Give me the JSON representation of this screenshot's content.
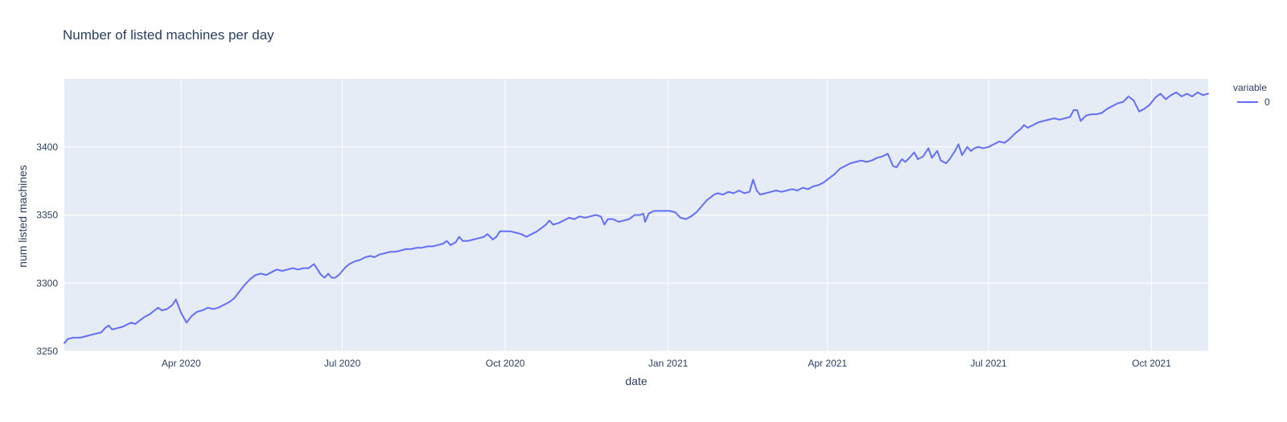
{
  "title": "Number of listed machines per day",
  "legend": {
    "title": "variable",
    "items": [
      {
        "label": "0",
        "color": "#636efa"
      }
    ]
  },
  "colors": {
    "line": "#636efa",
    "plot_bg": "#e5ecf6",
    "grid": "#ffffff",
    "text": "#2a3f5f",
    "paper_bg": "#ffffff"
  },
  "chart_data": {
    "type": "line",
    "title": "Number of listed machines per day",
    "xlabel": "date",
    "ylabel": "num listed machines",
    "grid": true,
    "legend_position": "right",
    "x_range": [
      "2020-01-26",
      "2021-11-02"
    ],
    "ylim": [
      3250,
      3450
    ],
    "y_ticks": [
      3250,
      3300,
      3350,
      3400
    ],
    "x_ticks": [
      {
        "label": "Apr 2020",
        "date": "2020-04-01"
      },
      {
        "label": "Jul 2020",
        "date": "2020-07-01"
      },
      {
        "label": "Oct 2020",
        "date": "2020-10-01"
      },
      {
        "label": "Jan 2021",
        "date": "2021-01-01"
      },
      {
        "label": "Apr 2021",
        "date": "2021-04-01"
      },
      {
        "label": "Jul 2021",
        "date": "2021-07-01"
      },
      {
        "label": "Oct 2021",
        "date": "2021-10-01"
      }
    ],
    "series": [
      {
        "name": "0",
        "color": "#636efa",
        "points": [
          [
            "2020-01-26",
            3256
          ],
          [
            "2020-01-28",
            3259
          ],
          [
            "2020-01-31",
            3260
          ],
          [
            "2020-02-04",
            3260
          ],
          [
            "2020-02-07",
            3261
          ],
          [
            "2020-02-10",
            3262
          ],
          [
            "2020-02-13",
            3263
          ],
          [
            "2020-02-16",
            3264
          ],
          [
            "2020-02-18",
            3267
          ],
          [
            "2020-02-20",
            3269
          ],
          [
            "2020-02-22",
            3266
          ],
          [
            "2020-02-25",
            3267
          ],
          [
            "2020-02-28",
            3268
          ],
          [
            "2020-03-02",
            3270
          ],
          [
            "2020-03-04",
            3271
          ],
          [
            "2020-03-06",
            3270
          ],
          [
            "2020-03-08",
            3272
          ],
          [
            "2020-03-11",
            3275
          ],
          [
            "2020-03-14",
            3277
          ],
          [
            "2020-03-17",
            3280
          ],
          [
            "2020-03-19",
            3282
          ],
          [
            "2020-03-21",
            3280
          ],
          [
            "2020-03-24",
            3281
          ],
          [
            "2020-03-27",
            3284
          ],
          [
            "2020-03-29",
            3288
          ],
          [
            "2020-04-01",
            3278
          ],
          [
            "2020-04-04",
            3271
          ],
          [
            "2020-04-07",
            3276
          ],
          [
            "2020-04-10",
            3279
          ],
          [
            "2020-04-13",
            3280
          ],
          [
            "2020-04-16",
            3282
          ],
          [
            "2020-04-19",
            3281
          ],
          [
            "2020-04-22",
            3282
          ],
          [
            "2020-04-25",
            3284
          ],
          [
            "2020-04-28",
            3286
          ],
          [
            "2020-05-01",
            3289
          ],
          [
            "2020-05-04",
            3294
          ],
          [
            "2020-05-07",
            3299
          ],
          [
            "2020-05-10",
            3303
          ],
          [
            "2020-05-13",
            3306
          ],
          [
            "2020-05-16",
            3307
          ],
          [
            "2020-05-19",
            3306
          ],
          [
            "2020-05-22",
            3308
          ],
          [
            "2020-05-25",
            3310
          ],
          [
            "2020-05-28",
            3309
          ],
          [
            "2020-05-31",
            3310
          ],
          [
            "2020-06-03",
            3311
          ],
          [
            "2020-06-06",
            3310
          ],
          [
            "2020-06-09",
            3311
          ],
          [
            "2020-06-12",
            3311
          ],
          [
            "2020-06-15",
            3314
          ],
          [
            "2020-06-17",
            3310
          ],
          [
            "2020-06-19",
            3306
          ],
          [
            "2020-06-21",
            3304
          ],
          [
            "2020-06-23",
            3307
          ],
          [
            "2020-06-25",
            3304
          ],
          [
            "2020-06-27",
            3304
          ],
          [
            "2020-06-29",
            3306
          ],
          [
            "2020-07-01",
            3309
          ],
          [
            "2020-07-03",
            3312
          ],
          [
            "2020-07-05",
            3314
          ],
          [
            "2020-07-08",
            3316
          ],
          [
            "2020-07-11",
            3317
          ],
          [
            "2020-07-14",
            3319
          ],
          [
            "2020-07-17",
            3320
          ],
          [
            "2020-07-19",
            3319
          ],
          [
            "2020-07-22",
            3321
          ],
          [
            "2020-07-25",
            3322
          ],
          [
            "2020-07-28",
            3323
          ],
          [
            "2020-07-31",
            3323
          ],
          [
            "2020-08-03",
            3324
          ],
          [
            "2020-08-06",
            3325
          ],
          [
            "2020-08-09",
            3325
          ],
          [
            "2020-08-12",
            3326
          ],
          [
            "2020-08-15",
            3326
          ],
          [
            "2020-08-18",
            3327
          ],
          [
            "2020-08-21",
            3327
          ],
          [
            "2020-08-24",
            3328
          ],
          [
            "2020-08-27",
            3329
          ],
          [
            "2020-08-29",
            3331
          ],
          [
            "2020-08-31",
            3328
          ],
          [
            "2020-09-03",
            3330
          ],
          [
            "2020-09-05",
            3334
          ],
          [
            "2020-09-07",
            3331
          ],
          [
            "2020-09-10",
            3331
          ],
          [
            "2020-09-13",
            3332
          ],
          [
            "2020-09-16",
            3333
          ],
          [
            "2020-09-19",
            3334
          ],
          [
            "2020-09-21",
            3336
          ],
          [
            "2020-09-24",
            3332
          ],
          [
            "2020-09-26",
            3334
          ],
          [
            "2020-09-28",
            3338
          ],
          [
            "2020-10-01",
            3338
          ],
          [
            "2020-10-04",
            3338
          ],
          [
            "2020-10-07",
            3337
          ],
          [
            "2020-10-10",
            3336
          ],
          [
            "2020-10-13",
            3334
          ],
          [
            "2020-10-16",
            3336
          ],
          [
            "2020-10-19",
            3338
          ],
          [
            "2020-10-22",
            3341
          ],
          [
            "2020-10-24",
            3343
          ],
          [
            "2020-10-26",
            3346
          ],
          [
            "2020-10-28",
            3343
          ],
          [
            "2020-10-31",
            3344
          ],
          [
            "2020-11-03",
            3346
          ],
          [
            "2020-11-06",
            3348
          ],
          [
            "2020-11-09",
            3347
          ],
          [
            "2020-11-12",
            3349
          ],
          [
            "2020-11-15",
            3348
          ],
          [
            "2020-11-18",
            3349
          ],
          [
            "2020-11-21",
            3350
          ],
          [
            "2020-11-24",
            3349
          ],
          [
            "2020-11-26",
            3343
          ],
          [
            "2020-11-28",
            3347
          ],
          [
            "2020-12-01",
            3347
          ],
          [
            "2020-12-04",
            3345
          ],
          [
            "2020-12-07",
            3346
          ],
          [
            "2020-12-10",
            3347
          ],
          [
            "2020-12-13",
            3350
          ],
          [
            "2020-12-16",
            3350
          ],
          [
            "2020-12-18",
            3351
          ],
          [
            "2020-12-19",
            3345
          ],
          [
            "2020-12-21",
            3351
          ],
          [
            "2020-12-24",
            3353
          ],
          [
            "2020-12-27",
            3353
          ],
          [
            "2020-12-30",
            3353
          ],
          [
            "2021-01-02",
            3353
          ],
          [
            "2021-01-05",
            3352
          ],
          [
            "2021-01-08",
            3348
          ],
          [
            "2021-01-11",
            3347
          ],
          [
            "2021-01-14",
            3349
          ],
          [
            "2021-01-17",
            3352
          ],
          [
            "2021-01-19",
            3355
          ],
          [
            "2021-01-21",
            3358
          ],
          [
            "2021-01-23",
            3361
          ],
          [
            "2021-01-25",
            3363
          ],
          [
            "2021-01-27",
            3365
          ],
          [
            "2021-01-29",
            3366
          ],
          [
            "2021-02-01",
            3365
          ],
          [
            "2021-02-04",
            3367
          ],
          [
            "2021-02-07",
            3366
          ],
          [
            "2021-02-10",
            3368
          ],
          [
            "2021-02-13",
            3366
          ],
          [
            "2021-02-16",
            3367
          ],
          [
            "2021-02-18",
            3376
          ],
          [
            "2021-02-20",
            3368
          ],
          [
            "2021-02-22",
            3365
          ],
          [
            "2021-02-25",
            3366
          ],
          [
            "2021-02-28",
            3367
          ],
          [
            "2021-03-03",
            3368
          ],
          [
            "2021-03-06",
            3367
          ],
          [
            "2021-03-09",
            3368
          ],
          [
            "2021-03-12",
            3369
          ],
          [
            "2021-03-15",
            3368
          ],
          [
            "2021-03-18",
            3370
          ],
          [
            "2021-03-21",
            3369
          ],
          [
            "2021-03-24",
            3371
          ],
          [
            "2021-03-27",
            3372
          ],
          [
            "2021-03-30",
            3374
          ],
          [
            "2021-04-02",
            3377
          ],
          [
            "2021-04-05",
            3380
          ],
          [
            "2021-04-08",
            3384
          ],
          [
            "2021-04-11",
            3386
          ],
          [
            "2021-04-14",
            3388
          ],
          [
            "2021-04-17",
            3389
          ],
          [
            "2021-04-20",
            3390
          ],
          [
            "2021-04-23",
            3389
          ],
          [
            "2021-04-26",
            3390
          ],
          [
            "2021-04-29",
            3392
          ],
          [
            "2021-05-02",
            3393
          ],
          [
            "2021-05-05",
            3395
          ],
          [
            "2021-05-08",
            3386
          ],
          [
            "2021-05-10",
            3385
          ],
          [
            "2021-05-13",
            3391
          ],
          [
            "2021-05-15",
            3389
          ],
          [
            "2021-05-18",
            3393
          ],
          [
            "2021-05-20",
            3396
          ],
          [
            "2021-05-22",
            3391
          ],
          [
            "2021-05-25",
            3393
          ],
          [
            "2021-05-28",
            3399
          ],
          [
            "2021-05-30",
            3392
          ],
          [
            "2021-06-02",
            3397
          ],
          [
            "2021-06-04",
            3390
          ],
          [
            "2021-06-07",
            3388
          ],
          [
            "2021-06-09",
            3391
          ],
          [
            "2021-06-12",
            3397
          ],
          [
            "2021-06-14",
            3402
          ],
          [
            "2021-06-16",
            3394
          ],
          [
            "2021-06-19",
            3400
          ],
          [
            "2021-06-21",
            3397
          ],
          [
            "2021-06-23",
            3399
          ],
          [
            "2021-06-25",
            3400
          ],
          [
            "2021-06-28",
            3399
          ],
          [
            "2021-07-01",
            3400
          ],
          [
            "2021-07-04",
            3402
          ],
          [
            "2021-07-07",
            3404
          ],
          [
            "2021-07-10",
            3403
          ],
          [
            "2021-07-13",
            3406
          ],
          [
            "2021-07-16",
            3410
          ],
          [
            "2021-07-19",
            3413
          ],
          [
            "2021-07-21",
            3416
          ],
          [
            "2021-07-23",
            3414
          ],
          [
            "2021-07-26",
            3416
          ],
          [
            "2021-07-29",
            3418
          ],
          [
            "2021-08-01",
            3419
          ],
          [
            "2021-08-04",
            3420
          ],
          [
            "2021-08-07",
            3421
          ],
          [
            "2021-08-10",
            3420
          ],
          [
            "2021-08-13",
            3421
          ],
          [
            "2021-08-16",
            3422
          ],
          [
            "2021-08-18",
            3427
          ],
          [
            "2021-08-20",
            3427
          ],
          [
            "2021-08-22",
            3419
          ],
          [
            "2021-08-25",
            3423
          ],
          [
            "2021-08-28",
            3424
          ],
          [
            "2021-08-31",
            3424
          ],
          [
            "2021-09-03",
            3425
          ],
          [
            "2021-09-06",
            3428
          ],
          [
            "2021-09-09",
            3430
          ],
          [
            "2021-09-12",
            3432
          ],
          [
            "2021-09-15",
            3433
          ],
          [
            "2021-09-18",
            3437
          ],
          [
            "2021-09-21",
            3434
          ],
          [
            "2021-09-24",
            3426
          ],
          [
            "2021-09-27",
            3428
          ],
          [
            "2021-09-30",
            3431
          ],
          [
            "2021-10-03",
            3436
          ],
          [
            "2021-10-06",
            3439
          ],
          [
            "2021-10-09",
            3435
          ],
          [
            "2021-10-12",
            3438
          ],
          [
            "2021-10-15",
            3440
          ],
          [
            "2021-10-18",
            3437
          ],
          [
            "2021-10-21",
            3439
          ],
          [
            "2021-10-24",
            3437
          ],
          [
            "2021-10-27",
            3440
          ],
          [
            "2021-10-30",
            3438
          ],
          [
            "2021-11-02",
            3439
          ]
        ]
      }
    ]
  }
}
